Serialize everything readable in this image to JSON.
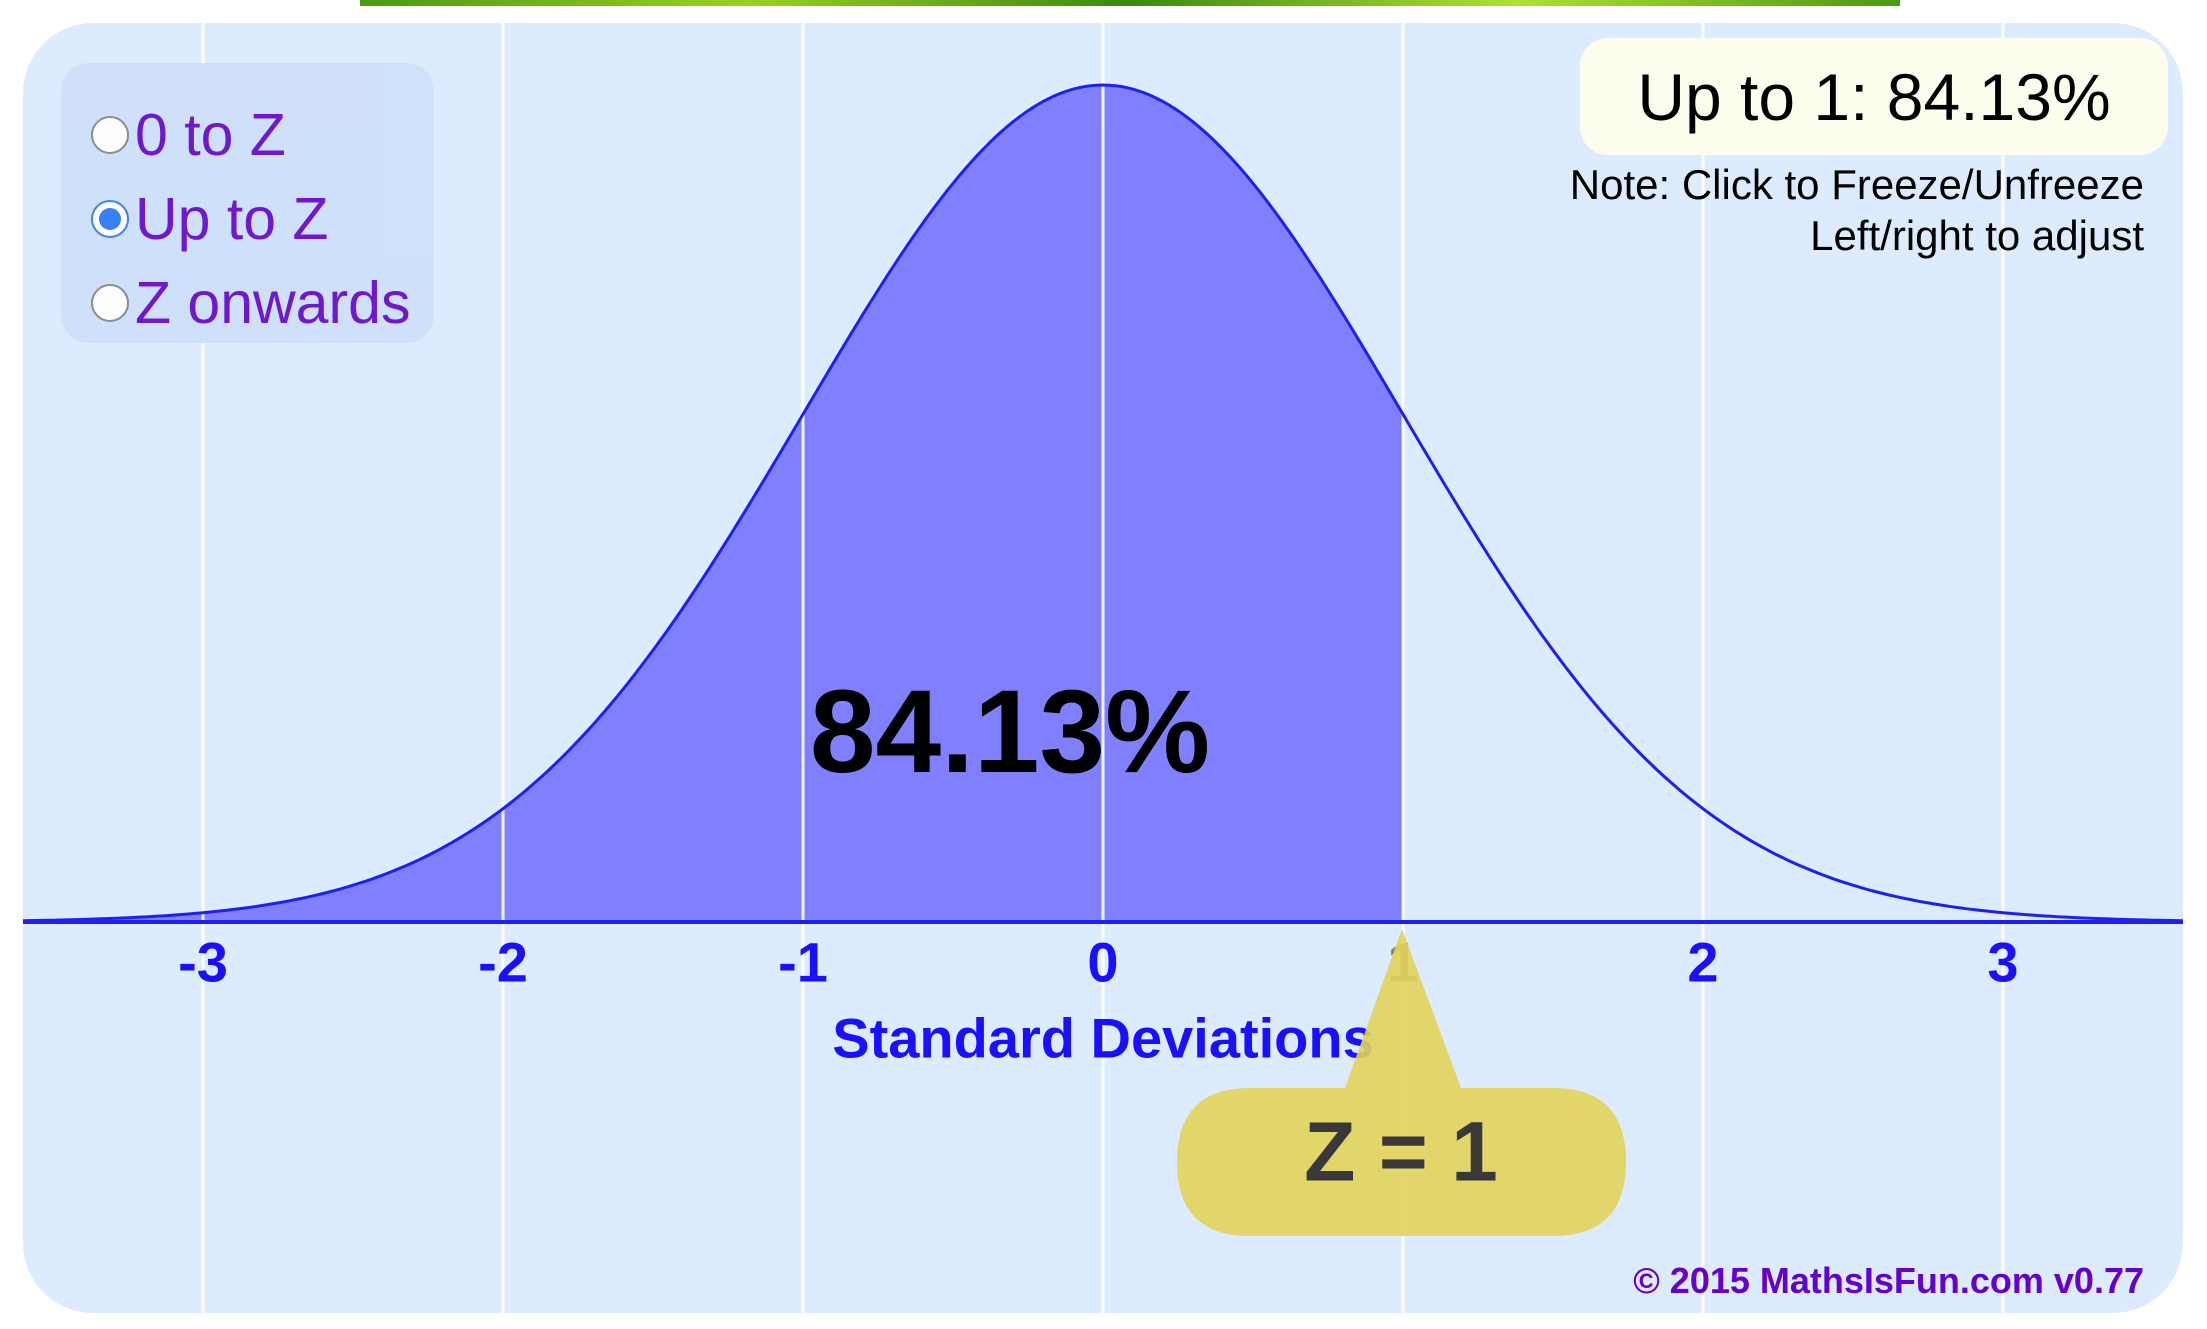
{
  "options": [
    {
      "label": "0 to Z",
      "selected": false
    },
    {
      "label": "Up to Z",
      "selected": true
    },
    {
      "label": "Z onwards",
      "selected": false
    }
  ],
  "result_text": "Up to 1: 84.13%",
  "note_line1": "Note: Click to Freeze/Unfreeze",
  "note_line2": "Left/right to adjust",
  "area_label": "84.13%",
  "z_label": "Z = 1",
  "copyright": "© 2015 MathsIsFun.com v0.77",
  "colors": {
    "fill": "#8080ff",
    "curve": "#2020ee",
    "background": "#dcebfd",
    "bubble": "#e2d35a",
    "axis_text": "#1a0fff",
    "option_text": "#6a0dcc"
  },
  "chart_data": {
    "type": "area",
    "distribution": "standard normal",
    "xlabel": "Standard Deviations",
    "xlim": [
      -3.6,
      3.6
    ],
    "x_ticks": [
      "-3",
      "-2",
      "-1",
      "0",
      "1",
      "2",
      "3"
    ],
    "z": 1,
    "shaded_region": [
      null,
      1
    ],
    "shaded_percent": 84.13,
    "grid": true
  }
}
